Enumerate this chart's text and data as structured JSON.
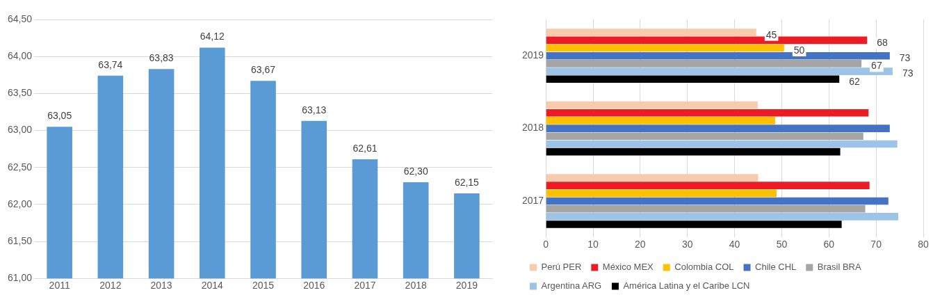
{
  "chart_data": [
    {
      "type": "bar",
      "categories": [
        "2011",
        "2012",
        "2013",
        "2014",
        "2015",
        "2016",
        "2017",
        "2018",
        "2019"
      ],
      "values": [
        63.05,
        63.74,
        63.83,
        64.12,
        63.67,
        63.13,
        62.61,
        62.3,
        62.15
      ],
      "value_labels": [
        "63,05",
        "63,74",
        "63,83",
        "64,12",
        "63,67",
        "63,13",
        "62,61",
        "62,30",
        "62,15"
      ],
      "color": "#5b9bd5",
      "ylim": [
        61,
        64.5
      ],
      "yticks": [
        {
          "value": 61,
          "label": "61,00"
        },
        {
          "value": 61.5,
          "label": "61,50"
        },
        {
          "value": 62,
          "label": "62,00"
        },
        {
          "value": 62.5,
          "label": "62,50"
        },
        {
          "value": 63,
          "label": "63,00"
        },
        {
          "value": 63.5,
          "label": "63,50"
        },
        {
          "value": 64,
          "label": "64,00"
        },
        {
          "value": 64.5,
          "label": "64,50"
        }
      ],
      "grid": "y",
      "legend": false
    },
    {
      "type": "bar",
      "orientation": "horizontal",
      "categories": [
        "2019",
        "2018",
        "2017"
      ],
      "xlim": [
        0,
        80
      ],
      "xticks": [
        0,
        10,
        20,
        30,
        40,
        50,
        60,
        70,
        80
      ],
      "grid": "x",
      "legend": "bottom",
      "series": [
        {
          "name": "Perú PER",
          "color": "#f8cbad",
          "values": [
            44.6,
            44.9,
            45.0
          ],
          "value_labels": [
            "45",
            null,
            null
          ]
        },
        {
          "name": "México MEX",
          "color": "#ed1c24",
          "values": [
            68.1,
            68.4,
            68.6
          ],
          "value_labels": [
            "68",
            null,
            null
          ]
        },
        {
          "name": "Colombia COL",
          "color": "#ffc000",
          "values": [
            50.5,
            48.6,
            48.9
          ],
          "value_labels": [
            "50",
            null,
            null
          ]
        },
        {
          "name": "Chile CHL",
          "color": "#4472c4",
          "values": [
            72.9,
            72.9,
            72.6
          ],
          "value_labels": [
            "73",
            null,
            null
          ]
        },
        {
          "name": "Brasil BRA",
          "color": "#a5a5a5",
          "values": [
            66.9,
            67.3,
            67.7
          ],
          "value_labels": [
            "67",
            null,
            null
          ]
        },
        {
          "name": "Argentina ARG",
          "color": "#9dc3e6",
          "values": [
            73.5,
            74.5,
            74.7
          ],
          "value_labels": [
            "73",
            null,
            null
          ]
        },
        {
          "name": "América Latina y el Caribe LCN",
          "color": "#000000",
          "values": [
            62.2,
            62.4,
            62.7
          ],
          "value_labels": [
            "62",
            null,
            null
          ]
        }
      ]
    }
  ]
}
